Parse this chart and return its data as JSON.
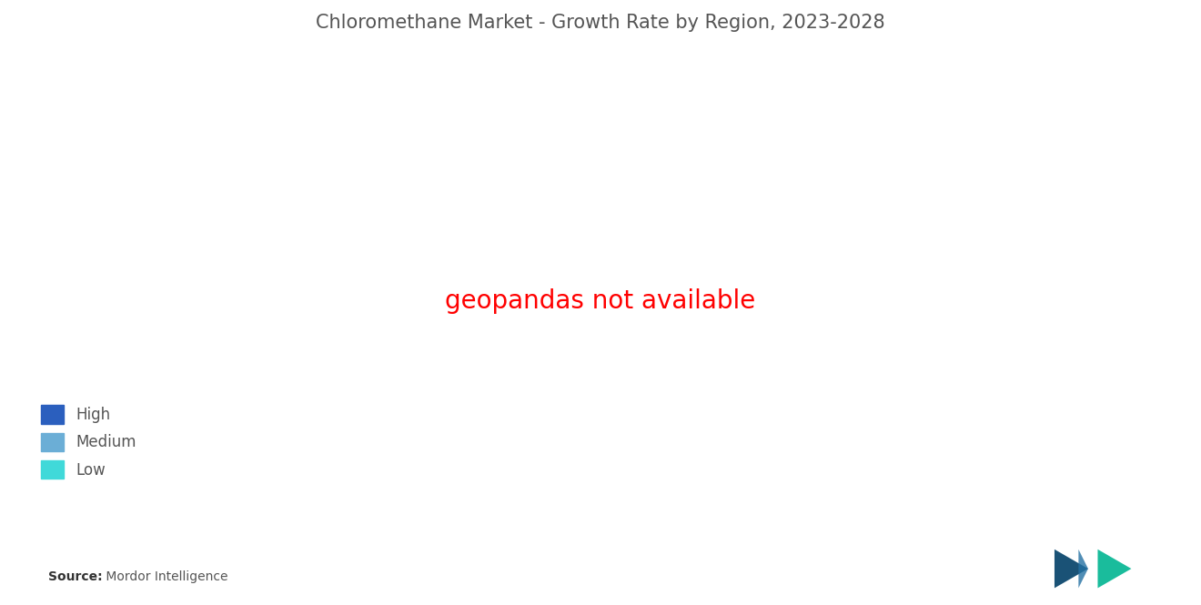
{
  "title": "Chloromethane Market - Growth Rate by Region, 2023-2028",
  "source_label": "Source:",
  "source_text": " Mordor Intelligence",
  "legend_items": [
    {
      "label": "High",
      "color": "#2b5fbe"
    },
    {
      "label": "Medium",
      "color": "#6baed6"
    },
    {
      "label": "Low",
      "color": "#40d9d9"
    }
  ],
  "region_colors": {
    "high": "#2b5fbe",
    "medium": "#6baed6",
    "low": "#40d9d9",
    "gray": "#9e9e9e",
    "ocean": "#ffffff",
    "border": "#ffffff"
  },
  "background_color": "#ffffff",
  "title_color": "#555555",
  "title_fontsize": 15
}
